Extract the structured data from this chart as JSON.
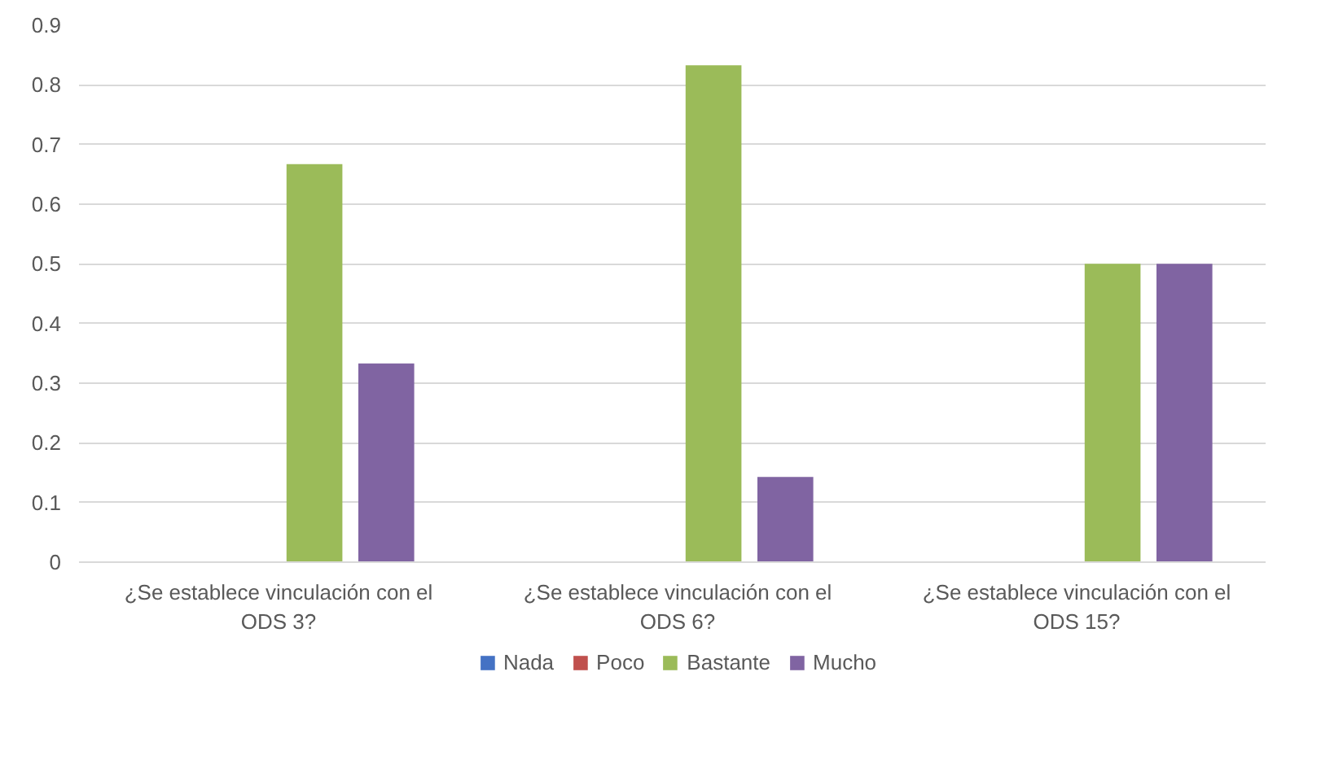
{
  "chart_data": {
    "type": "bar",
    "categories": [
      "¿Se establece vinculación con el ODS 3?",
      "¿Se establece vinculación con el ODS 6?",
      "¿Se establece vinculación con el ODS 15?"
    ],
    "series": [
      {
        "name": "Nada",
        "color": "#4472c4",
        "values": [
          0,
          0,
          0
        ]
      },
      {
        "name": "Poco",
        "color": "#c0504d",
        "values": [
          0,
          0,
          0
        ]
      },
      {
        "name": "Bastante",
        "color": "#9bbb59",
        "values": [
          0.667,
          0.833,
          0.5
        ]
      },
      {
        "name": "Mucho",
        "color": "#8064a2",
        "values": [
          0.333,
          0.143,
          0.5
        ]
      }
    ],
    "ylim": [
      0,
      0.9
    ],
    "yticks": [
      0,
      0.1,
      0.2,
      0.3,
      0.4,
      0.5,
      0.6,
      0.7,
      0.8,
      0.9
    ],
    "grid": "y",
    "legend": "bottom"
  }
}
